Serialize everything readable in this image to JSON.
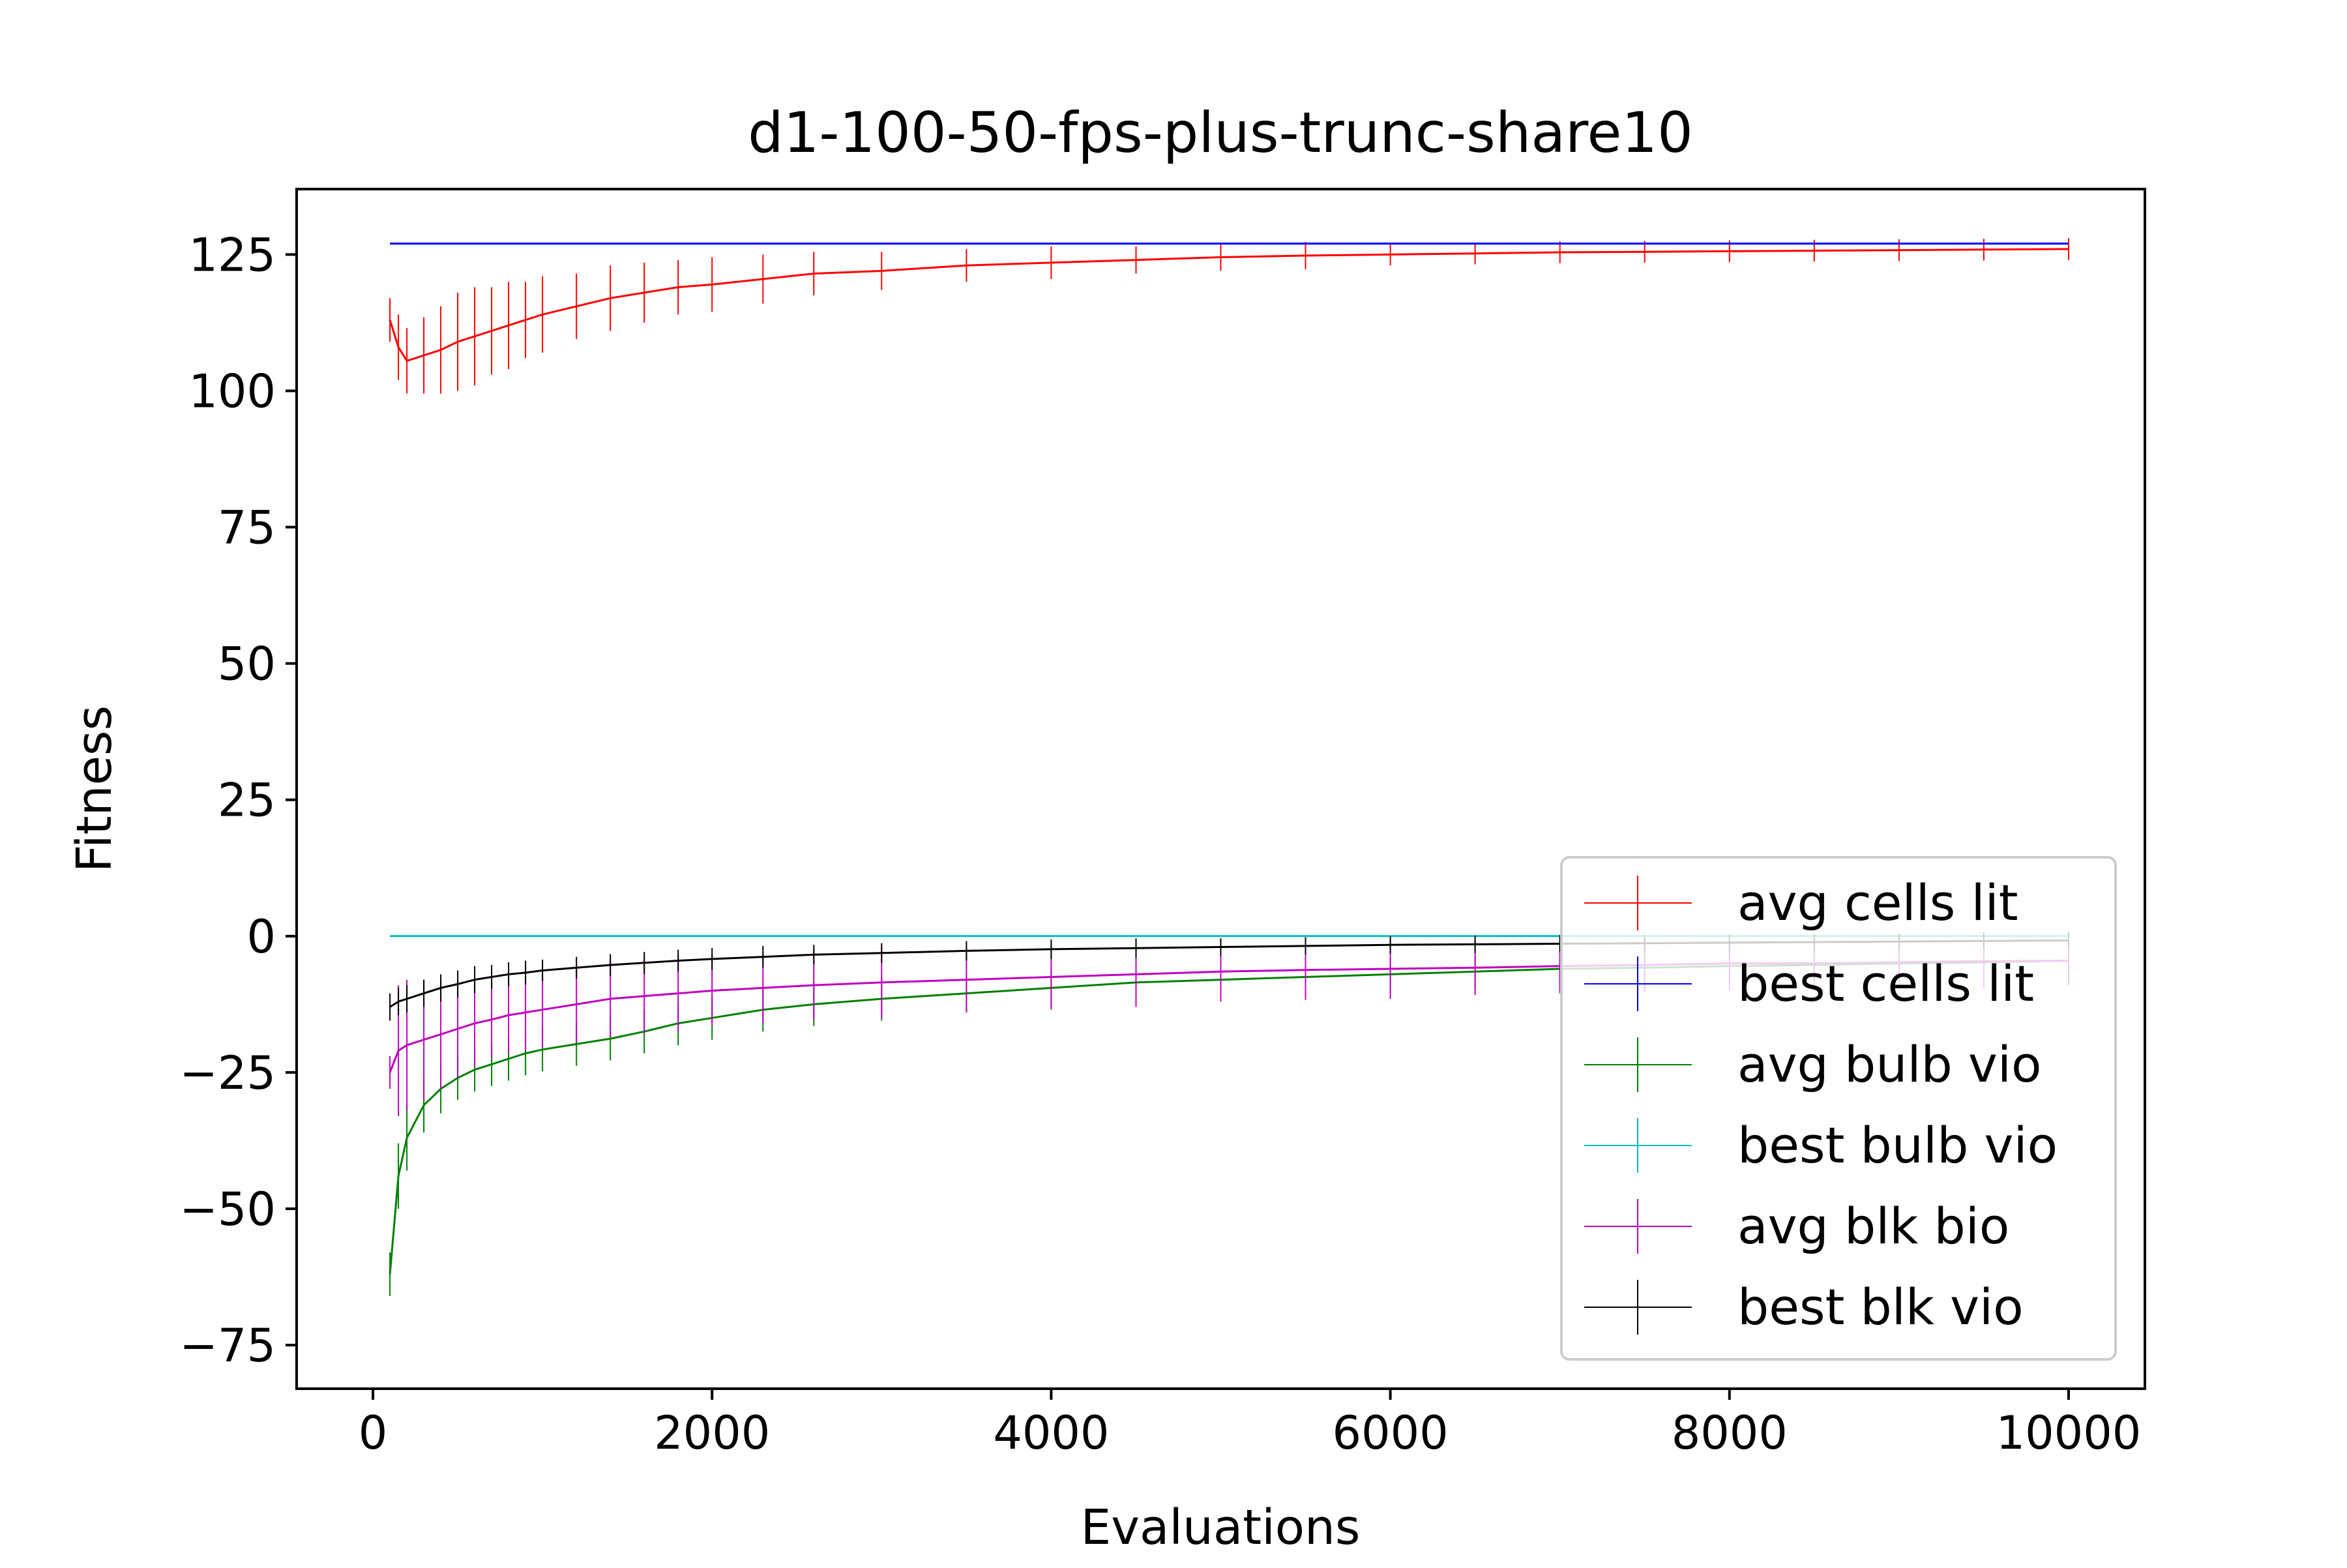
{
  "chart_data": {
    "type": "line",
    "title": "d1-100-50-fps-plus-trunc-share10",
    "xlabel": "Evaluations",
    "ylabel": "Fitness",
    "xlim": [
      -450,
      10450
    ],
    "ylim": [
      -83,
      137
    ],
    "xticks": [
      0,
      2000,
      4000,
      6000,
      8000,
      10000
    ],
    "xtick_labels": [
      "0",
      "2000",
      "4000",
      "6000",
      "8000",
      "10000"
    ],
    "yticks": [
      -75,
      -50,
      -25,
      0,
      25,
      50,
      75,
      100,
      125
    ],
    "ytick_labels": [
      "−75",
      "−50",
      "−25",
      "0",
      "25",
      "50",
      "75",
      "100",
      "125"
    ],
    "grid": false,
    "legend_position": "lower-right",
    "x": [
      100,
      150,
      200,
      300,
      400,
      500,
      600,
      700,
      800,
      900,
      1000,
      1200,
      1400,
      1600,
      1800,
      2000,
      2300,
      2600,
      3000,
      3500,
      4000,
      4500,
      5000,
      5500,
      6000,
      6500,
      7000,
      7500,
      8000,
      8500,
      9000,
      9500,
      10000
    ],
    "series": [
      {
        "name": "avg cells lit",
        "color": "#ff0000",
        "values": [
          113,
          108,
          105.5,
          106.5,
          107.5,
          109,
          110,
          111,
          112,
          113,
          114,
          115.5,
          117,
          118,
          119,
          119.5,
          120.5,
          121.5,
          122,
          123,
          123.5,
          124,
          124.5,
          124.8,
          125,
          125.2,
          125.4,
          125.5,
          125.6,
          125.7,
          125.8,
          125.9,
          126
        ],
        "err": [
          4,
          6,
          6,
          7,
          8,
          9,
          9,
          8,
          8,
          7,
          7,
          6,
          6,
          5.5,
          5,
          5,
          4.5,
          4,
          3.5,
          3,
          3,
          2.5,
          2.5,
          2.5,
          2,
          2,
          2,
          2,
          2,
          2,
          2,
          2,
          2
        ]
      },
      {
        "name": "best cells lit",
        "color": "#0000ff",
        "values": [
          127,
          127,
          127,
          127,
          127,
          127,
          127,
          127,
          127,
          127,
          127,
          127,
          127,
          127,
          127,
          127,
          127,
          127,
          127,
          127,
          127,
          127,
          127,
          127,
          127,
          127,
          127,
          127,
          127,
          127,
          127,
          127,
          127
        ],
        "err": [
          0,
          0,
          0,
          0,
          0,
          0,
          0,
          0,
          0,
          0,
          0,
          0,
          0,
          0,
          0,
          0,
          0,
          0,
          0,
          0,
          0,
          0,
          0,
          0,
          0,
          0,
          0,
          0,
          0,
          0,
          0,
          0,
          0
        ]
      },
      {
        "name": "avg bulb vio",
        "color": "#008000",
        "values": [
          -62,
          -44,
          -37,
          -31,
          -28,
          -26,
          -24.5,
          -23.5,
          -22.5,
          -21.5,
          -20.8,
          -19.8,
          -18.8,
          -17.5,
          -16,
          -15,
          -13.5,
          -12.5,
          -11.5,
          -10.5,
          -9.5,
          -8.5,
          -8,
          -7.5,
          -7,
          -6.5,
          -6,
          -5.8,
          -5.5,
          -5.3,
          -5,
          -4.8,
          -4.5
        ],
        "err": [
          4,
          6,
          6,
          5,
          4.5,
          4,
          4,
          4,
          4,
          4,
          4,
          4,
          4,
          4,
          4,
          4,
          4,
          4,
          4,
          3.5,
          3.5,
          3.5,
          3.5,
          3,
          3,
          3,
          3,
          3,
          3,
          3,
          3,
          3,
          3
        ]
      },
      {
        "name": "best bulb vio",
        "color": "#00bfbf",
        "values": [
          0,
          0,
          0,
          0,
          0,
          0,
          0,
          0,
          0,
          0,
          0,
          0,
          0,
          0,
          0,
          0,
          0,
          0,
          0,
          0,
          0,
          0,
          0,
          0,
          0,
          0,
          0,
          0,
          0,
          0,
          0,
          0,
          0
        ],
        "err": [
          0,
          0,
          0,
          0,
          0,
          0,
          0,
          0,
          0,
          0,
          0,
          0,
          0,
          0,
          0,
          0,
          0,
          0,
          0,
          0,
          0,
          0,
          0,
          0,
          0,
          0,
          0,
          0,
          0,
          0,
          0,
          0,
          0
        ]
      },
      {
        "name": "avg blk bio",
        "color": "#bf00bf",
        "values": [
          -25,
          -21,
          -20,
          -19,
          -18,
          -17,
          -16,
          -15.3,
          -14.5,
          -14,
          -13.5,
          -12.5,
          -11.5,
          -11,
          -10.5,
          -10,
          -9.5,
          -9,
          -8.5,
          -8,
          -7.5,
          -7,
          -6.5,
          -6.2,
          -6,
          -5.8,
          -5.5,
          -5.3,
          -5,
          -5,
          -4.8,
          -4.6,
          -4.5
        ],
        "err": [
          3,
          12,
          12,
          11,
          10,
          9,
          8,
          7,
          7,
          7,
          7,
          7,
          7,
          7,
          7,
          6.5,
          6.5,
          6.5,
          6.5,
          6,
          6,
          6,
          5.5,
          5.5,
          5.5,
          5,
          5,
          5,
          5,
          5,
          5,
          5,
          4.5
        ]
      },
      {
        "name": "best blk vio",
        "color": "#000000",
        "values": [
          -13,
          -12,
          -11.5,
          -10.5,
          -9.5,
          -8.8,
          -8,
          -7.5,
          -7,
          -6.7,
          -6.3,
          -5.8,
          -5.3,
          -4.9,
          -4.5,
          -4.2,
          -3.8,
          -3.4,
          -3.1,
          -2.7,
          -2.4,
          -2.2,
          -2,
          -1.8,
          -1.6,
          -1.5,
          -1.4,
          -1.3,
          -1.2,
          -1.1,
          -1,
          -0.9,
          -0.8
        ],
        "err": [
          2.5,
          2.5,
          2.5,
          2.5,
          2.5,
          2.5,
          2.5,
          2.2,
          2.2,
          2.2,
          2,
          2,
          2,
          2,
          2,
          2,
          2,
          1.8,
          1.8,
          1.8,
          1.8,
          1.8,
          1.6,
          1.6,
          1.6,
          1.6,
          1.6,
          1.5,
          1.5,
          1.5,
          1.5,
          1.5,
          1.5
        ]
      }
    ]
  }
}
